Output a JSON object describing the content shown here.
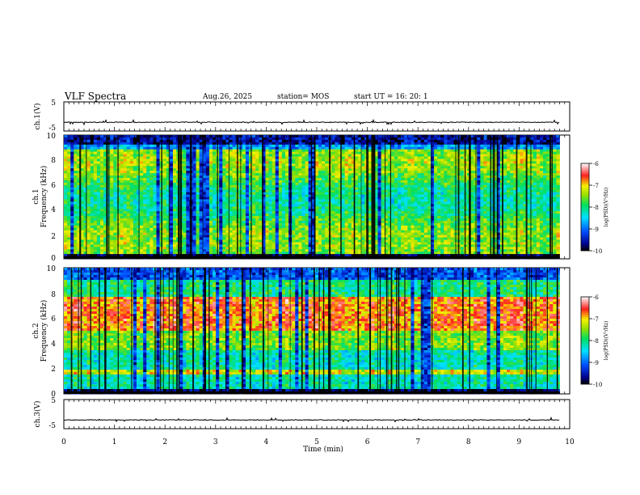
{
  "header": {
    "title": "VLF Spectra",
    "date": "Aug.26, 2025",
    "station": "station= MOS",
    "start": "start  UT =   16: 20: 1"
  },
  "chart_data": [
    {
      "type": "line",
      "name": "ch1-waveform",
      "ylabel": "ch.1(V)",
      "yticks": [
        "5",
        "-5"
      ],
      "ylim": [
        -5,
        5
      ],
      "xlim": [
        0,
        10
      ],
      "baseline": -2
    },
    {
      "type": "heatmap",
      "name": "ch1-spectrogram",
      "ylabel_line1": "ch.1",
      "ylabel_line2": "Frequency (kHz)",
      "yticks": [
        "0",
        "2",
        "4",
        "6",
        "8",
        "10"
      ],
      "ylim": [
        0,
        10
      ],
      "xlim": [
        0,
        9.8
      ],
      "zlim": [
        -10,
        -6
      ],
      "colorbar": {
        "label": "log(PSD)(V²/Hz)",
        "ticks": [
          "-6",
          "-7",
          "-8",
          "-9",
          "-10"
        ]
      }
    },
    {
      "type": "heatmap",
      "name": "ch2-spectrogram",
      "ylabel_line1": "ch.2",
      "ylabel_line2": "Frequency (kHz)",
      "yticks": [
        "0",
        "2",
        "4",
        "6",
        "8",
        "10"
      ],
      "ylim": [
        0,
        10
      ],
      "xlim": [
        0,
        9.8
      ],
      "zlim": [
        -10,
        -6
      ],
      "colorbar": {
        "label": "log(PSD)(V²/Hz)",
        "ticks": [
          "-6",
          "-7",
          "-8",
          "-9",
          "-10"
        ]
      }
    },
    {
      "type": "line",
      "name": "ch3-waveform",
      "ylabel": "ch.3(V)",
      "yticks": [
        "5",
        "-5"
      ],
      "ylim": [
        -5,
        5
      ],
      "xlim": [
        0,
        10
      ],
      "baseline": -2
    }
  ],
  "xaxis": {
    "label": "Time (min)",
    "ticks": [
      "0",
      "1",
      "2",
      "3",
      "4",
      "5",
      "6",
      "7",
      "8",
      "9",
      "10"
    ],
    "range": [
      0,
      10
    ]
  }
}
